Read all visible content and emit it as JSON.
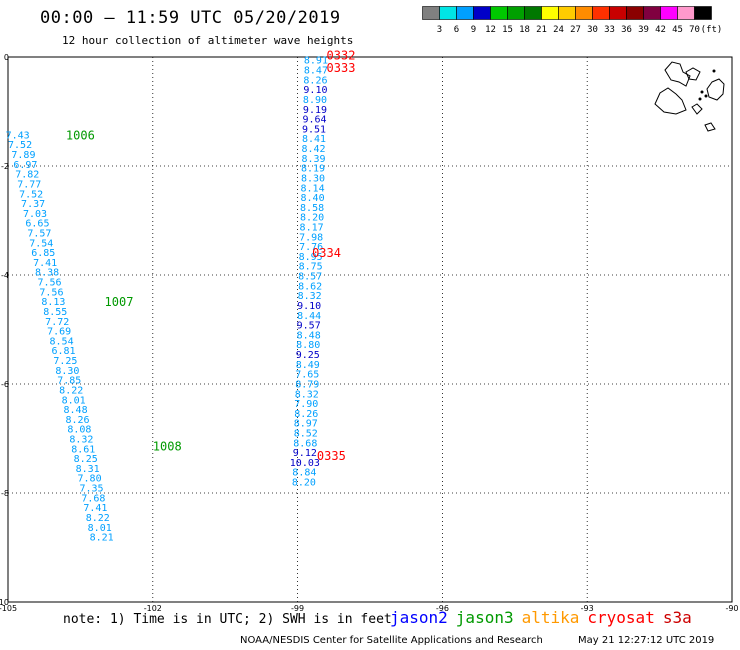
{
  "header": {
    "title": "00:00 – 11:59 UTC 05/20/2019",
    "subtitle": "12 hour collection of altimeter wave heights"
  },
  "colorbar": {
    "ticks": [
      "3",
      "6",
      "9",
      "12",
      "15",
      "18",
      "21",
      "24",
      "27",
      "30",
      "33",
      "36",
      "39",
      "42",
      "45",
      "70",
      "(ft)"
    ],
    "colors": [
      "#808080",
      "#00e5e5",
      "#00a0ff",
      "#0000c8",
      "#00c800",
      "#00a000",
      "#007800",
      "#ffff00",
      "#ffcc00",
      "#ff8c00",
      "#ff3000",
      "#c80000",
      "#8b0000",
      "#800040",
      "#ff00ff",
      "#ff99cc",
      "#000000"
    ]
  },
  "footer": {
    "note": "note: 1) Time is in UTC; 2) SWH is in feet",
    "credit": "NOAA/NESDIS Center for Satellite Applications and Research",
    "timestamp": "May 21 12:27:12 UTC 2019"
  },
  "satellites": [
    {
      "name": "jason2",
      "color": "#0000ff"
    },
    {
      "name": "jason3",
      "color": "#009900"
    },
    {
      "name": "altika",
      "color": "#ff9900"
    },
    {
      "name": "cryosat",
      "color": "#ff0000"
    },
    {
      "name": "s3a",
      "color": "#cc0000"
    }
  ],
  "chart_data": {
    "type": "scatter",
    "xlim": [
      -105,
      -90
    ],
    "ylim": [
      -10,
      0
    ],
    "x_ticks": [
      "-105",
      "-102",
      "-99",
      "-96",
      "-93",
      "-90"
    ],
    "y_ticks": [
      "0",
      "-2",
      "-4",
      "-6",
      "-8",
      "-10"
    ],
    "grid": true,
    "track_labels": [
      {
        "text": "1006",
        "x": -103.8,
        "y": -1.42,
        "color": "#009900"
      },
      {
        "text": "1007",
        "x": -103.0,
        "y": -4.48,
        "color": "#009900"
      },
      {
        "text": "1008",
        "x": -102.0,
        "y": -7.13,
        "color": "#009900"
      },
      {
        "text": "0332",
        "x": -98.4,
        "y": 0.05,
        "color": "#ff0000"
      },
      {
        "text": "0333",
        "x": -98.4,
        "y": -0.18,
        "color": "#ff0000"
      },
      {
        "text": "0334",
        "x": -98.7,
        "y": -3.58,
        "color": "#ff0000"
      },
      {
        "text": "0335",
        "x": -98.6,
        "y": -7.3,
        "color": "#ff0000"
      }
    ],
    "series": [
      {
        "name": "1006-1008 (jason3)",
        "points": [
          {
            "x": -104.8,
            "y": -1.42,
            "v": "7.43"
          },
          {
            "x": -104.75,
            "y": -1.6,
            "v": "7.52"
          },
          {
            "x": -104.68,
            "y": -1.78,
            "v": "7.89"
          },
          {
            "x": -104.64,
            "y": -1.96,
            "v": "6.97"
          },
          {
            "x": -104.6,
            "y": -2.14,
            "v": "7.82"
          },
          {
            "x": -104.56,
            "y": -2.32,
            "v": "7.77"
          },
          {
            "x": -104.52,
            "y": -2.5,
            "v": "7.52"
          },
          {
            "x": -104.48,
            "y": -2.68,
            "v": "7.37"
          },
          {
            "x": -104.44,
            "y": -2.86,
            "v": "7.03"
          },
          {
            "x": -104.39,
            "y": -3.04,
            "v": "6.65"
          },
          {
            "x": -104.35,
            "y": -3.22,
            "v": "7.57"
          },
          {
            "x": -104.31,
            "y": -3.4,
            "v": "7.54"
          },
          {
            "x": -104.27,
            "y": -3.58,
            "v": "6.85"
          },
          {
            "x": -104.23,
            "y": -3.76,
            "v": "7.41"
          },
          {
            "x": -104.19,
            "y": -3.94,
            "v": "8.38"
          },
          {
            "x": -104.14,
            "y": -4.12,
            "v": "7.56"
          },
          {
            "x": -104.1,
            "y": -4.3,
            "v": "7.56"
          },
          {
            "x": -104.06,
            "y": -4.48,
            "v": "8.13"
          },
          {
            "x": -104.02,
            "y": -4.66,
            "v": "8.55"
          },
          {
            "x": -103.98,
            "y": -4.84,
            "v": "7.72"
          },
          {
            "x": -103.94,
            "y": -5.02,
            "v": "7.69"
          },
          {
            "x": -103.89,
            "y": -5.2,
            "v": "8.54"
          },
          {
            "x": -103.85,
            "y": -5.38,
            "v": "6.81"
          },
          {
            "x": -103.81,
            "y": -5.56,
            "v": "7.25"
          },
          {
            "x": -103.77,
            "y": -5.74,
            "v": "8.30"
          },
          {
            "x": -103.73,
            "y": -5.92,
            "v": "7.85"
          },
          {
            "x": -103.69,
            "y": -6.1,
            "v": "8.22"
          },
          {
            "x": -103.64,
            "y": -6.28,
            "v": "8.01"
          },
          {
            "x": -103.6,
            "y": -6.46,
            "v": "8.48"
          },
          {
            "x": -103.56,
            "y": -6.64,
            "v": "8.26"
          },
          {
            "x": -103.52,
            "y": -6.82,
            "v": "8.08"
          },
          {
            "x": -103.48,
            "y": -7.0,
            "v": "8.32"
          },
          {
            "x": -103.44,
            "y": -7.18,
            "v": "8.61"
          },
          {
            "x": -103.39,
            "y": -7.36,
            "v": "8.25"
          },
          {
            "x": -103.35,
            "y": -7.54,
            "v": "8.31"
          },
          {
            "x": -103.31,
            "y": -7.72,
            "v": "7.80"
          },
          {
            "x": -103.27,
            "y": -7.9,
            "v": "7.35"
          },
          {
            "x": -103.23,
            "y": -8.08,
            "v": "7.68"
          },
          {
            "x": -103.19,
            "y": -8.26,
            "v": "7.41"
          },
          {
            "x": -103.14,
            "y": -8.44,
            "v": "8.22"
          },
          {
            "x": -103.1,
            "y": -8.62,
            "v": "8.01"
          },
          {
            "x": -103.06,
            "y": -8.8,
            "v": "8.21"
          }
        ]
      },
      {
        "name": "0332-0335 (cryosat)",
        "points": [
          {
            "x": -98.62,
            "y": -0.05,
            "v": "8.91",
            "c": "#00a0ff"
          },
          {
            "x": -98.62,
            "y": -0.23,
            "v": "8.47",
            "c": "#00a0ff"
          },
          {
            "x": -98.63,
            "y": -0.41,
            "v": "8.26",
            "c": "#00a0ff"
          },
          {
            "x": -98.63,
            "y": -0.59,
            "v": "9.10",
            "c": "#0000c8"
          },
          {
            "x": -98.64,
            "y": -0.77,
            "v": "8.90",
            "c": "#00a0ff"
          },
          {
            "x": -98.64,
            "y": -0.95,
            "v": "9.19",
            "c": "#0000c8"
          },
          {
            "x": -98.65,
            "y": -1.13,
            "v": "9.64",
            "c": "#0000c8"
          },
          {
            "x": -98.66,
            "y": -1.31,
            "v": "9.51",
            "c": "#0000c8"
          },
          {
            "x": -98.66,
            "y": -1.49,
            "v": "8.41",
            "c": "#00a0ff"
          },
          {
            "x": -98.67,
            "y": -1.67,
            "v": "8.42",
            "c": "#00a0ff"
          },
          {
            "x": -98.67,
            "y": -1.85,
            "v": "8.39",
            "c": "#00a0ff"
          },
          {
            "x": -98.68,
            "y": -2.03,
            "v": "8.19",
            "c": "#00a0ff"
          },
          {
            "x": -98.68,
            "y": -2.21,
            "v": "8.30",
            "c": "#00a0ff"
          },
          {
            "x": -98.69,
            "y": -2.39,
            "v": "8.14",
            "c": "#00a0ff"
          },
          {
            "x": -98.69,
            "y": -2.57,
            "v": "8.40",
            "c": "#00a0ff"
          },
          {
            "x": -98.7,
            "y": -2.75,
            "v": "8.58",
            "c": "#00a0ff"
          },
          {
            "x": -98.7,
            "y": -2.93,
            "v": "8.20",
            "c": "#00a0ff"
          },
          {
            "x": -98.71,
            "y": -3.11,
            "v": "8.17",
            "c": "#00a0ff"
          },
          {
            "x": -98.72,
            "y": -3.29,
            "v": "7.98",
            "c": "#00a0ff"
          },
          {
            "x": -98.72,
            "y": -3.47,
            "v": "7.76",
            "c": "#00a0ff"
          },
          {
            "x": -98.73,
            "y": -3.65,
            "v": "8.95",
            "c": "#00a0ff"
          },
          {
            "x": -98.73,
            "y": -3.83,
            "v": "8.75",
            "c": "#00a0ff"
          },
          {
            "x": -98.74,
            "y": -4.01,
            "v": "8.57",
            "c": "#00a0ff"
          },
          {
            "x": -98.74,
            "y": -4.19,
            "v": "8.62",
            "c": "#00a0ff"
          },
          {
            "x": -98.75,
            "y": -4.37,
            "v": "8.32",
            "c": "#00a0ff"
          },
          {
            "x": -98.76,
            "y": -4.55,
            "v": "9.10",
            "c": "#0000c8"
          },
          {
            "x": -98.76,
            "y": -4.73,
            "v": "8.44",
            "c": "#00a0ff"
          },
          {
            "x": -98.77,
            "y": -4.91,
            "v": "9.57",
            "c": "#0000c8"
          },
          {
            "x": -98.77,
            "y": -5.09,
            "v": "8.48",
            "c": "#00a0ff"
          },
          {
            "x": -98.78,
            "y": -5.27,
            "v": "8.80",
            "c": "#00a0ff"
          },
          {
            "x": -98.79,
            "y": -5.45,
            "v": "9.25",
            "c": "#0000c8"
          },
          {
            "x": -98.79,
            "y": -5.63,
            "v": "8.49",
            "c": "#00a0ff"
          },
          {
            "x": -98.8,
            "y": -5.81,
            "v": "7.65",
            "c": "#00a0ff"
          },
          {
            "x": -98.8,
            "y": -5.99,
            "v": "8.79",
            "c": "#00a0ff"
          },
          {
            "x": -98.81,
            "y": -6.17,
            "v": "8.32",
            "c": "#00a0ff"
          },
          {
            "x": -98.82,
            "y": -6.35,
            "v": "7.90",
            "c": "#00a0ff"
          },
          {
            "x": -98.82,
            "y": -6.53,
            "v": "8.26",
            "c": "#00a0ff"
          },
          {
            "x": -98.83,
            "y": -6.71,
            "v": "8.97",
            "c": "#00a0ff"
          },
          {
            "x": -98.83,
            "y": -6.89,
            "v": "8.52",
            "c": "#00a0ff"
          },
          {
            "x": -98.84,
            "y": -7.07,
            "v": "8.68",
            "c": "#00a0ff"
          },
          {
            "x": -98.85,
            "y": -7.25,
            "v": "9.12",
            "c": "#0000c8"
          },
          {
            "x": -98.85,
            "y": -7.43,
            "v": "10.03",
            "c": "#0000c8"
          },
          {
            "x": -98.86,
            "y": -7.61,
            "v": "8.84",
            "c": "#00a0ff"
          },
          {
            "x": -98.87,
            "y": -7.79,
            "v": "8.20",
            "c": "#00a0ff"
          }
        ]
      }
    ]
  }
}
